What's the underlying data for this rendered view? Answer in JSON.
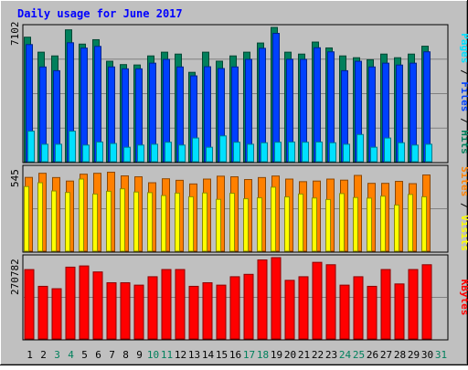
{
  "chart_data": [
    {
      "type": "bar",
      "title": "Daily usage for June 2017",
      "ylabel_parts": [
        "Pages",
        "Files",
        "Hits"
      ],
      "ymax_label": "7102",
      "ylim": [
        0,
        7102
      ],
      "categories": [
        "1",
        "2",
        "3",
        "4",
        "5",
        "6",
        "7",
        "8",
        "9",
        "10",
        "11",
        "12",
        "13",
        "14",
        "15",
        "16",
        "17",
        "18",
        "19",
        "20",
        "21",
        "22",
        "23",
        "24",
        "25",
        "26",
        "27",
        "28",
        "29",
        "30",
        "31"
      ],
      "weekend_days": [
        "3",
        "4",
        "10",
        "11",
        "17",
        "18",
        "24",
        "25",
        "31"
      ],
      "series": [
        {
          "name": "Hits",
          "values": [
            6585,
            5792,
            5594,
            6974,
            6219,
            6452,
            5313,
            5135,
            5115,
            5594,
            5792,
            5691,
            4726,
            5792,
            5316,
            5594,
            5792,
            6277,
            7102,
            5792,
            5691,
            6327,
            6017,
            5594,
            5498,
            5392,
            5691,
            5498,
            5691,
            6108,
            null
          ]
        },
        {
          "name": "Files",
          "values": [
            6194,
            5010,
            4812,
            6290,
            6007,
            6097,
            5011,
            4912,
            4911,
            5211,
            5411,
            5011,
            4539,
            5022,
            4927,
            5011,
            5411,
            5996,
            6786,
            5416,
            5411,
            6026,
            5810,
            4812,
            5310,
            5011,
            5211,
            5111,
            5211,
            5811,
            null
          ]
        },
        {
          "name": "Pages",
          "values": [
            1614,
            923,
            923,
            1614,
            879,
            1041,
            962,
            765,
            879,
            923,
            1030,
            879,
            1252,
            765,
            1364,
            1030,
            923,
            1001,
            1030,
            1041,
            1030,
            1041,
            1001,
            923,
            1436,
            765,
            1252,
            1001,
            879,
            923,
            null
          ]
        }
      ]
    },
    {
      "type": "bar",
      "ylabel_parts": [
        "Sites",
        "Visits"
      ],
      "ymax_label": "545",
      "ylim": [
        0,
        545
      ],
      "categories": [
        "1",
        "2",
        "3",
        "4",
        "5",
        "6",
        "7",
        "8",
        "9",
        "10",
        "11",
        "12",
        "13",
        "14",
        "15",
        "16",
        "17",
        "18",
        "19",
        "20",
        "21",
        "22",
        "23",
        "24",
        "25",
        "26",
        "27",
        "28",
        "29",
        "30",
        "31"
      ],
      "series": [
        {
          "name": "Visits",
          "values": [
            484,
            511,
            483,
            460,
            505,
            511,
            518,
            494,
            488,
            449,
            475,
            465,
            441,
            473,
            492,
            488,
            470,
            483,
            493,
            473,
            456,
            460,
            473,
            466,
            497,
            445,
            445,
            458,
            443,
            500,
            null
          ]
        },
        {
          "name": "Sites",
          "values": [
            424,
            449,
            395,
            385,
            473,
            375,
            393,
            409,
            388,
            384,
            365,
            381,
            357,
            382,
            340,
            380,
            344,
            350,
            420,
            356,
            375,
            349,
            339,
            378,
            352,
            348,
            361,
            303,
            372,
            357,
            null
          ]
        }
      ]
    },
    {
      "type": "bar",
      "ylabel_parts": [
        "KBytes"
      ],
      "ymax_label": "270782",
      "ylim": [
        0,
        270782
      ],
      "categories": [
        "1",
        "2",
        "3",
        "4",
        "5",
        "6",
        "7",
        "8",
        "9",
        "10",
        "11",
        "12",
        "13",
        "14",
        "15",
        "16",
        "17",
        "18",
        "19",
        "20",
        "21",
        "22",
        "23",
        "24",
        "25",
        "26",
        "27",
        "28",
        "29",
        "30",
        "31"
      ],
      "series": [
        {
          "name": "KBytes",
          "values": [
            230960,
            175185,
            167221,
            239087,
            243120,
            223159,
            187169,
            187169,
            179156,
            207150,
            231142,
            231142,
            175185,
            187169,
            179156,
            207150,
            215141,
            263130,
            270782,
            195163,
            207150,
            255105,
            247112,
            179156,
            207150,
            175185,
            231142,
            183161,
            231142,
            247112,
            null
          ]
        }
      ]
    }
  ],
  "colors": {
    "hits": "#00805C",
    "files": "#0040FF",
    "pages": "#00E0FF",
    "visits": "#FF8000",
    "sites": "#FFFF00",
    "kbytes": "#FF0000",
    "title": "#0000FF",
    "weekend_label": "#00805C",
    "weekday_label": "#000000",
    "background": "#C0C0C0",
    "grid": "#808080"
  },
  "separator": "/"
}
